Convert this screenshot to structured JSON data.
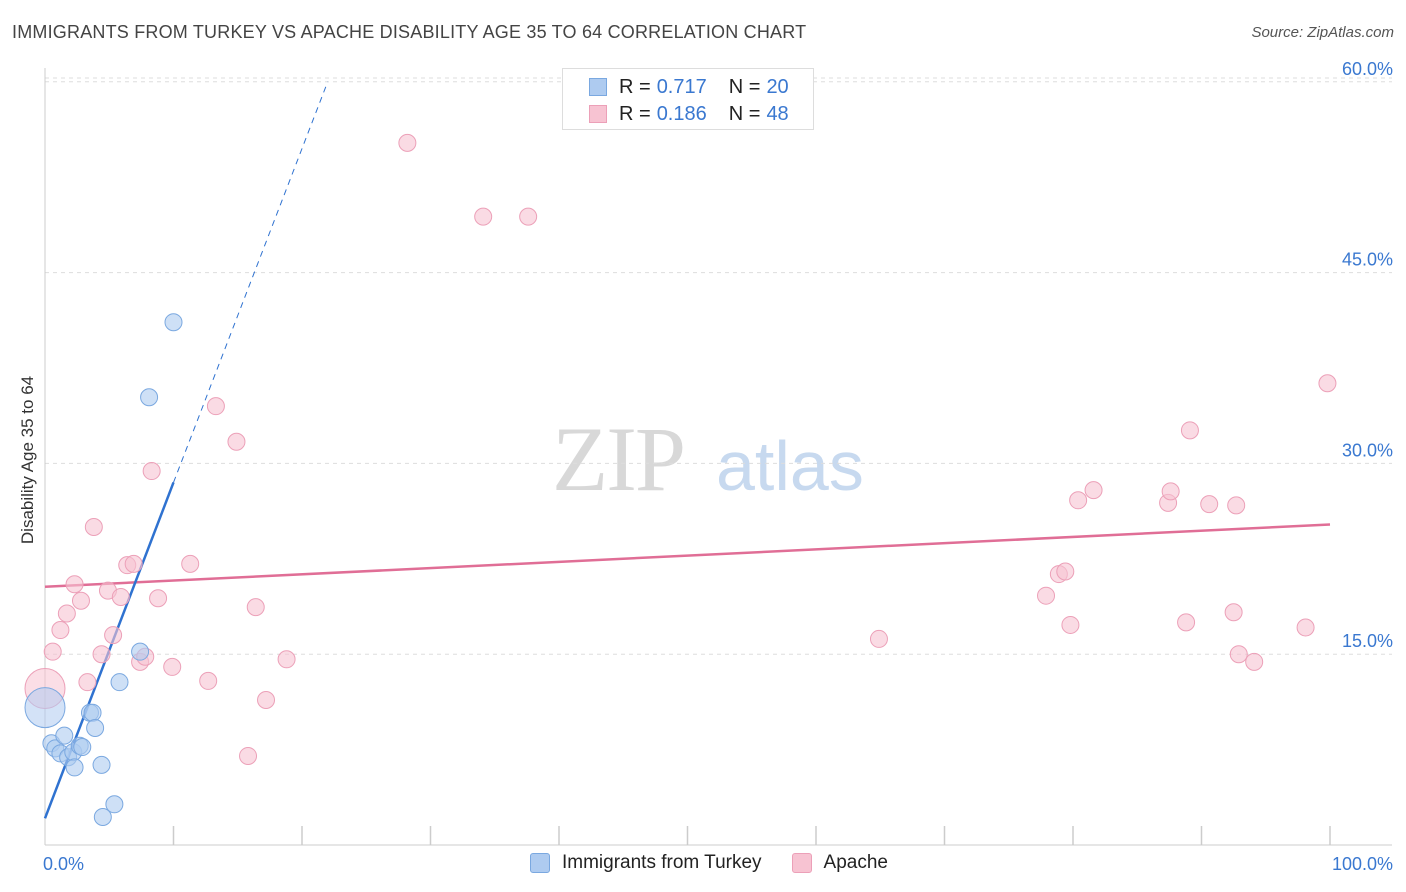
{
  "header": {
    "title": "IMMIGRANTS FROM TURKEY VS APACHE DISABILITY AGE 35 TO 64 CORRELATION CHART",
    "source": "Source: ZipAtlas.com"
  },
  "watermark": {
    "zip": "ZIP",
    "atlas": "atlas"
  },
  "legend_top": [
    {
      "r_label": "R =",
      "r_value": "0.717",
      "n_label": "N =",
      "n_value": "20"
    },
    {
      "r_label": "R =",
      "r_value": "0.186",
      "n_label": "N =",
      "n_value": "48"
    }
  ],
  "colors": {
    "blue_fill": "#aecbf0",
    "blue_stroke": "#7aa8e0",
    "blue_line": "#2f72d0",
    "pink_fill": "#f7c3d2",
    "pink_stroke": "#eca0b8",
    "pink_line": "#e06e96",
    "tick_label": "#3a78d0",
    "grid": "#dddddd"
  },
  "chart_data": {
    "type": "scatter",
    "title": "IMMIGRANTS FROM TURKEY VS APACHE DISABILITY AGE 35 TO 64 CORRELATION CHART",
    "xlabel": "",
    "ylabel": "Disability Age 35 to 64",
    "xlim": [
      0,
      100
    ],
    "ylim": [
      0,
      63
    ],
    "x_tick_labels": [
      "0.0%",
      "100.0%"
    ],
    "y_ticks": [
      15,
      30,
      45,
      60
    ],
    "y_tick_labels": [
      "15.0%",
      "30.0%",
      "45.0%",
      "60.0%"
    ],
    "grid": true,
    "legend": "top-center",
    "series": [
      {
        "name": "Immigrants from Turkey",
        "r": 0.717,
        "n": 20,
        "trend": {
          "x": [
            0,
            10
          ],
          "y": [
            2.1,
            28.5
          ],
          "dashed_extension_to": [
            22,
            60.0
          ]
        },
        "points": [
          {
            "x": 0.0,
            "y": 10.8,
            "big": true
          },
          {
            "x": 0.5,
            "y": 8.0
          },
          {
            "x": 0.8,
            "y": 7.6
          },
          {
            "x": 1.2,
            "y": 7.2
          },
          {
            "x": 1.5,
            "y": 8.6
          },
          {
            "x": 1.8,
            "y": 6.9
          },
          {
            "x": 2.2,
            "y": 7.3
          },
          {
            "x": 2.3,
            "y": 6.1
          },
          {
            "x": 2.7,
            "y": 7.8
          },
          {
            "x": 2.9,
            "y": 7.7
          },
          {
            "x": 3.5,
            "y": 10.4
          },
          {
            "x": 3.7,
            "y": 10.4
          },
          {
            "x": 3.9,
            "y": 9.2
          },
          {
            "x": 4.4,
            "y": 6.3
          },
          {
            "x": 4.5,
            "y": 2.2
          },
          {
            "x": 5.4,
            "y": 3.2
          },
          {
            "x": 5.8,
            "y": 12.8
          },
          {
            "x": 7.4,
            "y": 15.2
          },
          {
            "x": 8.1,
            "y": 35.2
          },
          {
            "x": 10.0,
            "y": 41.1
          }
        ]
      },
      {
        "name": "Apache",
        "r": 0.186,
        "n": 48,
        "trend": {
          "x": [
            0,
            100
          ],
          "y": [
            20.3,
            25.2
          ]
        },
        "points": [
          {
            "x": 0.0,
            "y": 12.3,
            "big": true
          },
          {
            "x": 0.6,
            "y": 15.2
          },
          {
            "x": 1.2,
            "y": 16.9
          },
          {
            "x": 1.7,
            "y": 18.2
          },
          {
            "x": 2.3,
            "y": 20.5
          },
          {
            "x": 2.8,
            "y": 19.2
          },
          {
            "x": 3.3,
            "y": 12.8
          },
          {
            "x": 3.8,
            "y": 25.0
          },
          {
            "x": 4.4,
            "y": 15.0
          },
          {
            "x": 4.9,
            "y": 20.0
          },
          {
            "x": 5.3,
            "y": 16.5
          },
          {
            "x": 5.9,
            "y": 19.5
          },
          {
            "x": 6.4,
            "y": 22.0
          },
          {
            "x": 6.9,
            "y": 22.1
          },
          {
            "x": 7.4,
            "y": 14.4
          },
          {
            "x": 7.8,
            "y": 14.8
          },
          {
            "x": 8.3,
            "y": 29.4
          },
          {
            "x": 8.8,
            "y": 19.4
          },
          {
            "x": 9.9,
            "y": 14.0
          },
          {
            "x": 11.3,
            "y": 22.1
          },
          {
            "x": 12.7,
            "y": 12.9
          },
          {
            "x": 13.3,
            "y": 34.5
          },
          {
            "x": 14.9,
            "y": 31.7
          },
          {
            "x": 15.8,
            "y": 7.0
          },
          {
            "x": 16.4,
            "y": 18.7
          },
          {
            "x": 17.2,
            "y": 11.4
          },
          {
            "x": 18.8,
            "y": 14.6
          },
          {
            "x": 28.2,
            "y": 55.2
          },
          {
            "x": 34.1,
            "y": 49.4
          },
          {
            "x": 37.6,
            "y": 49.4
          },
          {
            "x": 64.9,
            "y": 16.2
          },
          {
            "x": 77.9,
            "y": 19.6
          },
          {
            "x": 78.9,
            "y": 21.3
          },
          {
            "x": 79.4,
            "y": 21.5
          },
          {
            "x": 79.8,
            "y": 17.3
          },
          {
            "x": 80.4,
            "y": 27.1
          },
          {
            "x": 81.6,
            "y": 27.9
          },
          {
            "x": 87.4,
            "y": 26.9
          },
          {
            "x": 87.6,
            "y": 27.8
          },
          {
            "x": 88.8,
            "y": 17.5
          },
          {
            "x": 89.1,
            "y": 32.6
          },
          {
            "x": 90.6,
            "y": 26.8
          },
          {
            "x": 92.5,
            "y": 18.3
          },
          {
            "x": 92.7,
            "y": 26.7
          },
          {
            "x": 92.9,
            "y": 15.0
          },
          {
            "x": 94.1,
            "y": 14.4
          },
          {
            "x": 98.1,
            "y": 17.1
          },
          {
            "x": 99.8,
            "y": 36.3
          }
        ]
      }
    ]
  }
}
